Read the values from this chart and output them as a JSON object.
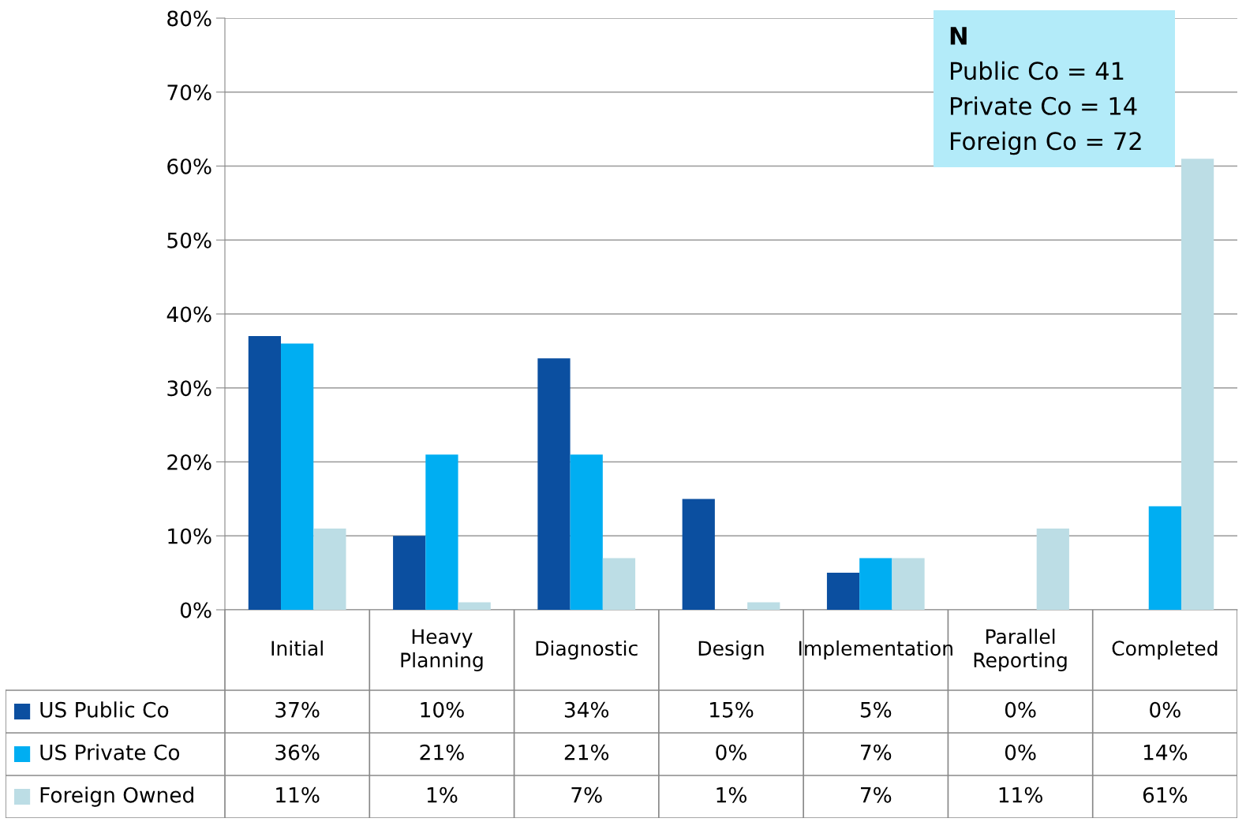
{
  "chart_data": {
    "type": "bar",
    "categories": [
      "Initial",
      "Heavy Planning",
      "Diagnostic",
      "Design",
      "Implementation",
      "Parallel Reporting",
      "Completed"
    ],
    "series": [
      {
        "name": "US Public Co",
        "color": "#0b4fa0",
        "values": [
          37,
          10,
          34,
          15,
          5,
          0,
          0
        ],
        "value_labels": [
          "37%",
          "10%",
          "34%",
          "15%",
          "5%",
          "0%",
          "0%"
        ]
      },
      {
        "name": "US Private Co",
        "color": "#00aef2",
        "values": [
          36,
          21,
          21,
          0,
          7,
          0,
          14
        ],
        "value_labels": [
          "36%",
          "21%",
          "21%",
          "0%",
          "7%",
          "0%",
          "14%"
        ]
      },
      {
        "name": "Foreign Owned",
        "color": "#bcdde5",
        "values": [
          11,
          1,
          7,
          1,
          7,
          11,
          61
        ],
        "value_labels": [
          "11%",
          "1%",
          "7%",
          "1%",
          "7%",
          "11%",
          "61%"
        ]
      }
    ],
    "ylim": [
      0,
      80
    ],
    "yticks": [
      {
        "value": 0,
        "label": "0%"
      },
      {
        "value": 10,
        "label": "10%"
      },
      {
        "value": 20,
        "label": "20%"
      },
      {
        "value": 30,
        "label": "30%"
      },
      {
        "value": 40,
        "label": "40%"
      },
      {
        "value": 50,
        "label": "50%"
      },
      {
        "value": 60,
        "label": "60%"
      },
      {
        "value": 70,
        "label": "70%"
      },
      {
        "value": 80,
        "label": "80%"
      }
    ],
    "grid": "y",
    "legend": "bottom left",
    "annotations": [
      "N",
      "Public Co = 41",
      "Private Co = 14",
      "Foreign Co = 72"
    ]
  }
}
